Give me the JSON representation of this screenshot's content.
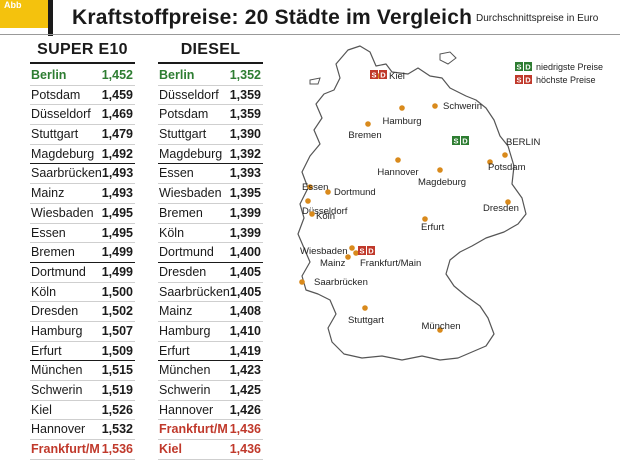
{
  "header": {
    "tag": "Abb",
    "title": "Kraftstoffpreise: 20 Städte im Vergleich",
    "subtitle": "Durchschnittspreise in Euro"
  },
  "colors": {
    "low": "#2e7d32",
    "high": "#c0392b",
    "dot": "#d98a1c",
    "map_fill": "#ffffff",
    "map_stroke": "#555555"
  },
  "legend": {
    "low_label": "niedrigste Preise",
    "high_label": "höchste Preise",
    "s": "S",
    "d": "D"
  },
  "chart_data": {
    "type": "table",
    "tables": [
      {
        "name": "SUPER E10",
        "rows": [
          {
            "city": "Berlin",
            "price": "1,452",
            "mark": "low"
          },
          {
            "city": "Potsdam",
            "price": "1,459"
          },
          {
            "city": "Düsseldorf",
            "price": "1,469"
          },
          {
            "city": "Stuttgart",
            "price": "1,479"
          },
          {
            "city": "Magdeburg",
            "price": "1,492",
            "group_end": true
          },
          {
            "city": "Saarbrücken",
            "price": "1,493"
          },
          {
            "city": "Mainz",
            "price": "1,493"
          },
          {
            "city": "Wiesbaden",
            "price": "1,495"
          },
          {
            "city": "Essen",
            "price": "1,495"
          },
          {
            "city": "Bremen",
            "price": "1,499",
            "group_end": true
          },
          {
            "city": "Dortmund",
            "price": "1,499"
          },
          {
            "city": "Köln",
            "price": "1,500"
          },
          {
            "city": "Dresden",
            "price": "1,502"
          },
          {
            "city": "Hamburg",
            "price": "1,507"
          },
          {
            "city": "Erfurt",
            "price": "1,509",
            "group_end": true
          },
          {
            "city": "München",
            "price": "1,515"
          },
          {
            "city": "Schwerin",
            "price": "1,519"
          },
          {
            "city": "Kiel",
            "price": "1,526"
          },
          {
            "city": "Hannover",
            "price": "1,532"
          },
          {
            "city": "Frankfurt/M",
            "price": "1,536",
            "mark": "high"
          }
        ]
      },
      {
        "name": "DIESEL",
        "rows": [
          {
            "city": "Berlin",
            "price": "1,352",
            "mark": "low"
          },
          {
            "city": "Düsseldorf",
            "price": "1,359"
          },
          {
            "city": "Potsdam",
            "price": "1,359"
          },
          {
            "city": "Stuttgart",
            "price": "1,390"
          },
          {
            "city": "Magdeburg",
            "price": "1,392",
            "group_end": true
          },
          {
            "city": "Essen",
            "price": "1,393"
          },
          {
            "city": "Wiesbaden",
            "price": "1,395"
          },
          {
            "city": "Bremen",
            "price": "1,399"
          },
          {
            "city": "Köln",
            "price": "1,399"
          },
          {
            "city": "Dortmund",
            "price": "1,400",
            "group_end": true
          },
          {
            "city": "Dresden",
            "price": "1,405"
          },
          {
            "city": "Saarbrücken",
            "price": "1,405"
          },
          {
            "city": "Mainz",
            "price": "1,408"
          },
          {
            "city": "Hamburg",
            "price": "1,410"
          },
          {
            "city": "Erfurt",
            "price": "1,419",
            "group_end": true
          },
          {
            "city": "München",
            "price": "1,423"
          },
          {
            "city": "Schwerin",
            "price": "1,425"
          },
          {
            "city": "Hannover",
            "price": "1,426"
          },
          {
            "city": "Frankfurt/M",
            "price": "1,436",
            "mark": "high"
          },
          {
            "city": "Kiel",
            "price": "1,436",
            "mark": "high"
          }
        ]
      }
    ]
  },
  "map": {
    "cities": [
      {
        "name": "Kiel",
        "label": "Kiel",
        "marker": "high"
      },
      {
        "name": "Schwerin",
        "label": "Schwerin"
      },
      {
        "name": "Hamburg",
        "label": "Hamburg"
      },
      {
        "name": "Bremen",
        "label": "Bremen"
      },
      {
        "name": "Berlin",
        "label": "BERLIN",
        "marker": "low"
      },
      {
        "name": "Potsdam",
        "label": "Potsdam"
      },
      {
        "name": "Hannover",
        "label": "Hannover"
      },
      {
        "name": "Magdeburg",
        "label": "Magdeburg"
      },
      {
        "name": "Essen",
        "label": "Essen"
      },
      {
        "name": "Dortmund",
        "label": "Dortmund"
      },
      {
        "name": "Düsseldorf",
        "label": "Düsseldorf"
      },
      {
        "name": "Köln",
        "label": "Köln"
      },
      {
        "name": "Dresden",
        "label": "Dresden"
      },
      {
        "name": "Erfurt",
        "label": "Erfurt"
      },
      {
        "name": "Wiesbaden",
        "label": "Wiesbaden"
      },
      {
        "name": "Mainz",
        "label": "Mainz"
      },
      {
        "name": "Frankfurt/Main",
        "label": "Frankfurt/Main",
        "marker": "high"
      },
      {
        "name": "Saarbrücken",
        "label": "Saarbrücken"
      },
      {
        "name": "Stuttgart",
        "label": "Stuttgart"
      },
      {
        "name": "München",
        "label": "München"
      }
    ]
  }
}
